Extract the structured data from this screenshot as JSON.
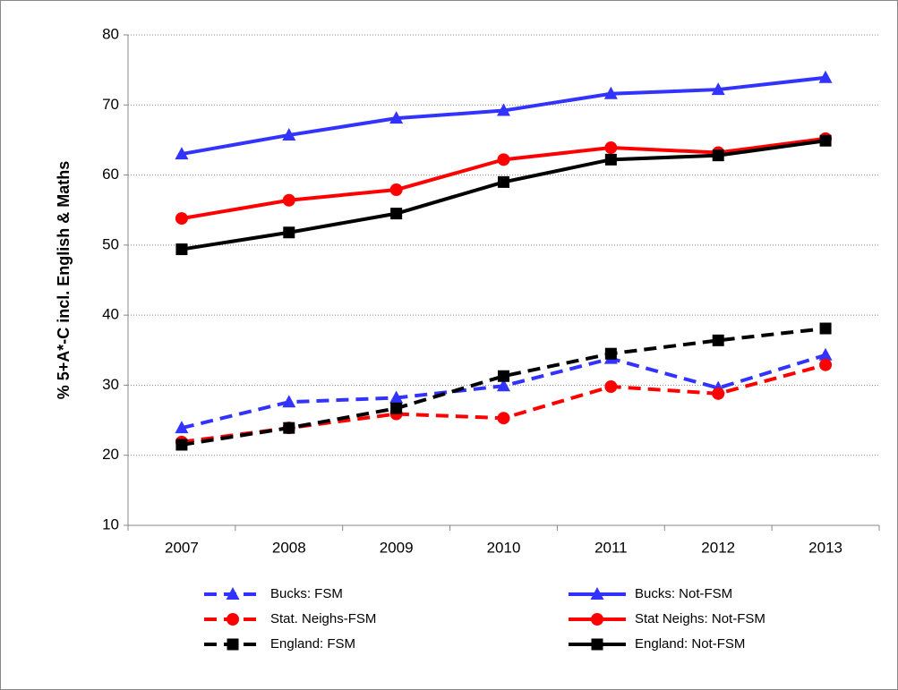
{
  "chart_data": {
    "type": "line",
    "y_label": "% 5+A*-C incl. English & Maths",
    "categories": [
      "2007",
      "2008",
      "2009",
      "2010",
      "2011",
      "2012",
      "2013"
    ],
    "ylim": [
      10,
      80
    ],
    "yticks": [
      10,
      20,
      30,
      40,
      50,
      60,
      70,
      80
    ],
    "grid": true,
    "series": [
      {
        "name": "Bucks: FSM",
        "color": "#3333ff",
        "dash": true,
        "marker": "triangle",
        "values": [
          23.9,
          27.6,
          28.2,
          29.9,
          33.8,
          29.6,
          34.3
        ]
      },
      {
        "name": "Bucks: Not-FSM",
        "color": "#3333ff",
        "dash": false,
        "marker": "triangle",
        "values": [
          63.0,
          65.7,
          68.1,
          69.2,
          71.6,
          72.2,
          73.9
        ]
      },
      {
        "name": "Stat. Neighs-FSM",
        "color": "#ff0000",
        "dash": true,
        "marker": "circle",
        "values": [
          21.9,
          23.9,
          25.9,
          25.3,
          29.8,
          28.8,
          32.9
        ]
      },
      {
        "name": "Stat Neighs: Not-FSM",
        "color": "#ff0000",
        "dash": false,
        "marker": "circle",
        "values": [
          53.8,
          56.4,
          57.9,
          62.2,
          63.9,
          63.2,
          65.2
        ]
      },
      {
        "name": "England: FSM",
        "color": "#000000",
        "dash": true,
        "marker": "square",
        "values": [
          21.5,
          23.9,
          26.7,
          31.3,
          34.5,
          36.4,
          38.1
        ]
      },
      {
        "name": "England: Not-FSM",
        "color": "#000000",
        "dash": false,
        "marker": "square",
        "values": [
          49.4,
          51.8,
          54.5,
          59.0,
          62.2,
          62.8,
          64.9
        ]
      }
    ]
  }
}
